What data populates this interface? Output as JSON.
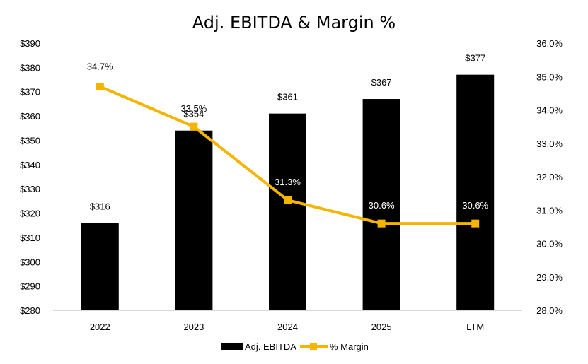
{
  "title": "Adj. EBITDA & Margin %",
  "colors": {
    "bar": "#000000",
    "line": "#F5B400",
    "axis": "#d9d9d9"
  },
  "legend": {
    "bar_label": "Adj. EBITDA",
    "line_label": "% Margin",
    "position": "bottom"
  },
  "chart_data": {
    "type": "bar",
    "categories": [
      "2022",
      "2023",
      "2024",
      "2025",
      "LTM"
    ],
    "series": [
      {
        "name": "Adj. EBITDA",
        "type": "bar",
        "axis": "left",
        "values": [
          316,
          354,
          361,
          367,
          377
        ],
        "labels": [
          "$316",
          "$354",
          "$361",
          "$367",
          "$377"
        ]
      },
      {
        "name": "% Margin",
        "type": "line",
        "axis": "right",
        "values": [
          34.7,
          33.5,
          31.3,
          30.6,
          30.6
        ],
        "labels": [
          "34.7%",
          "33.5%",
          "31.3%",
          "30.6%",
          "30.6%"
        ]
      }
    ],
    "y_left": {
      "min": 280,
      "max": 390,
      "step": 10,
      "tick_labels": [
        "$280",
        "$290",
        "$300",
        "$310",
        "$320",
        "$330",
        "$340",
        "$350",
        "$360",
        "$370",
        "$380",
        "$390"
      ]
    },
    "y_right": {
      "min": 28.0,
      "max": 36.0,
      "step": 1.0,
      "tick_labels": [
        "28.0%",
        "29.0%",
        "30.0%",
        "31.0%",
        "32.0%",
        "33.0%",
        "34.0%",
        "35.0%",
        "36.0%"
      ]
    },
    "grid": false
  }
}
